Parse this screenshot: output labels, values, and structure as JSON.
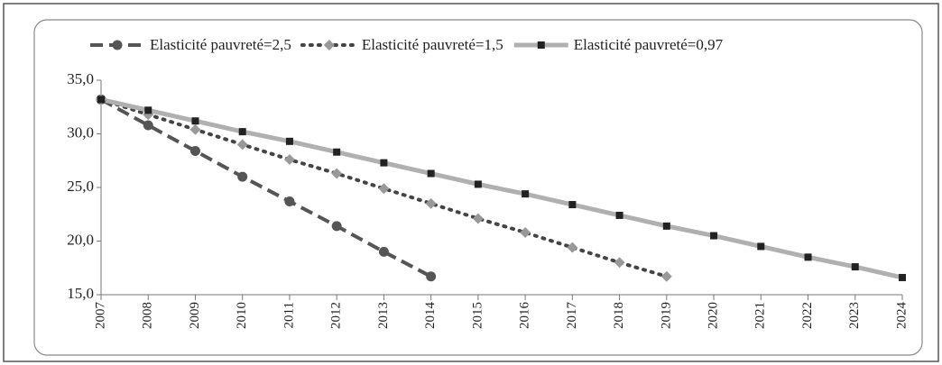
{
  "chart_data": {
    "type": "line",
    "categories": [
      "2007",
      "2008",
      "2009",
      "2010",
      "2011",
      "2012",
      "2013",
      "2014",
      "2015",
      "2016",
      "2017",
      "2018",
      "2019",
      "2020",
      "2021",
      "2022",
      "2023",
      "2024"
    ],
    "series": [
      {
        "name": "Elasticité pauvreté=2,5",
        "color": "#555555",
        "dash": "dashed",
        "marker": "circle",
        "values": [
          33.2,
          30.8,
          28.4,
          26.0,
          23.7,
          21.4,
          19.0,
          16.7,
          null,
          null,
          null,
          null,
          null,
          null,
          null,
          null,
          null,
          null
        ]
      },
      {
        "name": "Elasticité pauvreté=1,5",
        "color": "#444444",
        "dash": "dotted",
        "marker": "diamond",
        "values": [
          33.2,
          31.8,
          30.4,
          29.0,
          27.6,
          26.3,
          24.9,
          23.5,
          22.1,
          20.8,
          19.4,
          18.0,
          16.7,
          null,
          null,
          null,
          null,
          null
        ]
      },
      {
        "name": "Elasticité pauvreté=0,97",
        "color": "#b0b0b0",
        "dash": "solid",
        "marker": "square",
        "values": [
          33.2,
          32.2,
          31.2,
          30.2,
          29.3,
          28.3,
          27.3,
          26.3,
          25.3,
          24.4,
          23.4,
          22.4,
          21.4,
          20.5,
          19.5,
          18.5,
          17.6,
          16.6
        ]
      }
    ],
    "ylim": [
      15,
      35
    ],
    "yticks": [
      {
        "value": 15,
        "label": "15,0"
      },
      {
        "value": 20,
        "label": "20,0"
      },
      {
        "value": 25,
        "label": "25,0"
      },
      {
        "value": 30,
        "label": "30,0"
      },
      {
        "value": 35,
        "label": "35,0"
      }
    ],
    "grid": false
  }
}
